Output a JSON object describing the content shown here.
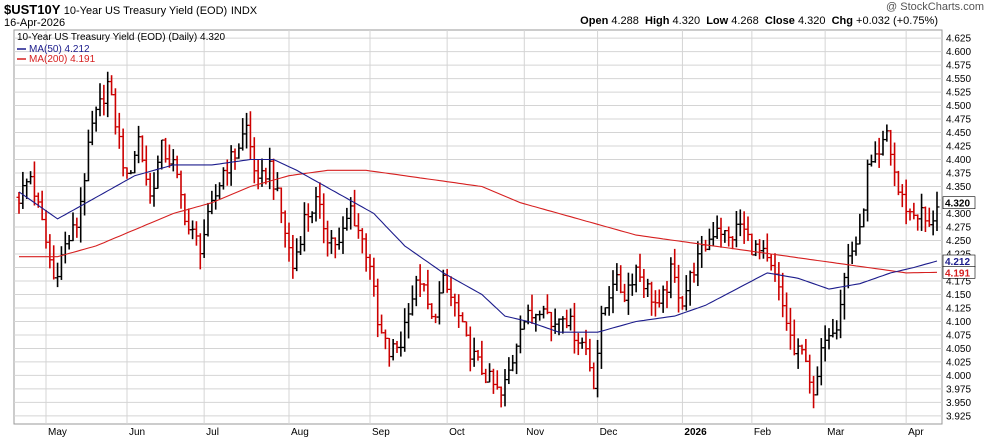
{
  "header": {
    "symbol": "$UST10Y",
    "description": "10-Year US Treasury Yield (EOD)",
    "exchange": "INDX",
    "date": "16-Apr-2026",
    "open_label": "Open",
    "open": "4.288",
    "high_label": "High",
    "high": "4.320",
    "low_label": "Low",
    "low": "4.268",
    "close_label": "Close",
    "close": "4.320",
    "chg_label": "Chg",
    "chg": "+0.032 (+0.75%)",
    "brand": "@ StockCharts.com"
  },
  "legend": {
    "price_line": "10-Year US Treasury Yield (EOD) (Daily) 4.320",
    "ma50": "MA(50) 4.212",
    "ma200": "MA(200) 4.191"
  },
  "colors": {
    "up_bar": "#000000",
    "down_bar": "#cc0000",
    "ma50": "#1c1c8c",
    "ma200": "#d62020",
    "grid": "#d4d4d4",
    "plot_bg": "#ffffff"
  },
  "chart_data": {
    "type": "ohlc",
    "ylim": [
      3.91,
      4.64
    ],
    "y_ticks": [
      "4.625",
      "4.600",
      "4.575",
      "4.550",
      "4.525",
      "4.500",
      "4.475",
      "4.450",
      "4.425",
      "4.400",
      "4.375",
      "4.350",
      "4.325",
      "4.300",
      "4.275",
      "4.250",
      "4.225",
      "4.200",
      "4.175",
      "4.150",
      "4.125",
      "4.100",
      "4.075",
      "4.050",
      "4.025",
      "4.000",
      "3.975",
      "3.950",
      "3.925"
    ],
    "x_labels": [
      {
        "label": "May",
        "index": 7
      },
      {
        "label": "Jun",
        "index": 28
      },
      {
        "label": "Jul",
        "index": 48
      },
      {
        "label": "Aug",
        "index": 70
      },
      {
        "label": "Sep",
        "index": 91
      },
      {
        "label": "Oct",
        "index": 111
      },
      {
        "label": "Nov",
        "index": 131
      },
      {
        "label": "Dec",
        "index": 150
      },
      {
        "label": "2026",
        "index": 172,
        "bold": true
      },
      {
        "label": "Feb",
        "index": 190
      },
      {
        "label": "Mar",
        "index": 209
      },
      {
        "label": "Apr",
        "index": 230
      }
    ],
    "last_index": 238,
    "closes_anchor": [
      [
        0,
        4.33
      ],
      [
        3,
        4.37
      ],
      [
        6,
        4.28
      ],
      [
        9,
        4.18
      ],
      [
        12,
        4.24
      ],
      [
        15,
        4.28
      ],
      [
        19,
        4.46
      ],
      [
        23,
        4.54
      ],
      [
        25,
        4.47
      ],
      [
        28,
        4.36
      ],
      [
        31,
        4.44
      ],
      [
        34,
        4.33
      ],
      [
        37,
        4.42
      ],
      [
        40,
        4.39
      ],
      [
        44,
        4.27
      ],
      [
        47,
        4.24
      ],
      [
        50,
        4.31
      ],
      [
        53,
        4.38
      ],
      [
        56,
        4.41
      ],
      [
        59,
        4.46
      ],
      [
        62,
        4.35
      ],
      [
        65,
        4.39
      ],
      [
        68,
        4.3
      ],
      [
        71,
        4.2
      ],
      [
        74,
        4.29
      ],
      [
        77,
        4.32
      ],
      [
        80,
        4.26
      ],
      [
        83,
        4.24
      ],
      [
        86,
        4.31
      ],
      [
        89,
        4.25
      ],
      [
        91,
        4.21
      ],
      [
        93,
        4.09
      ],
      [
        96,
        4.04
      ],
      [
        99,
        4.06
      ],
      [
        101,
        4.13
      ],
      [
        104,
        4.18
      ],
      [
        107,
        4.1
      ],
      [
        110,
        4.17
      ],
      [
        113,
        4.13
      ],
      [
        116,
        4.06
      ],
      [
        119,
        4.02
      ],
      [
        122,
        3.99
      ],
      [
        125,
        3.96
      ],
      [
        128,
        4.03
      ],
      [
        130,
        4.1
      ],
      [
        133,
        4.11
      ],
      [
        136,
        4.14
      ],
      [
        138,
        4.09
      ],
      [
        141,
        4.12
      ],
      [
        144,
        4.08
      ],
      [
        147,
        4.05
      ],
      [
        149,
        3.99
      ],
      [
        151,
        4.1
      ],
      [
        154,
        4.18
      ],
      [
        157,
        4.15
      ],
      [
        160,
        4.2
      ],
      [
        163,
        4.16
      ],
      [
        166,
        4.12
      ],
      [
        169,
        4.19
      ],
      [
        172,
        4.14
      ],
      [
        175,
        4.2
      ],
      [
        178,
        4.24
      ],
      [
        181,
        4.28
      ],
      [
        184,
        4.25
      ],
      [
        187,
        4.28
      ],
      [
        190,
        4.24
      ],
      [
        193,
        4.22
      ],
      [
        196,
        4.18
      ],
      [
        199,
        4.1
      ],
      [
        201,
        4.04
      ],
      [
        204,
        4.04
      ],
      [
        206,
        3.95
      ],
      [
        209,
        4.08
      ],
      [
        212,
        4.1
      ],
      [
        215,
        4.22
      ],
      [
        218,
        4.26
      ],
      [
        220,
        4.38
      ],
      [
        223,
        4.4
      ],
      [
        225,
        4.45
      ],
      [
        228,
        4.34
      ],
      [
        231,
        4.3
      ],
      [
        234,
        4.3
      ],
      [
        236,
        4.27
      ],
      [
        238,
        4.32
      ]
    ],
    "ma50_anchor": [
      [
        0,
        4.34
      ],
      [
        10,
        4.29
      ],
      [
        20,
        4.33
      ],
      [
        30,
        4.37
      ],
      [
        40,
        4.39
      ],
      [
        50,
        4.39
      ],
      [
        60,
        4.4
      ],
      [
        66,
        4.4
      ],
      [
        72,
        4.38
      ],
      [
        82,
        4.34
      ],
      [
        92,
        4.3
      ],
      [
        100,
        4.24
      ],
      [
        110,
        4.19
      ],
      [
        120,
        4.15
      ],
      [
        126,
        4.11
      ],
      [
        132,
        4.1
      ],
      [
        140,
        4.08
      ],
      [
        150,
        4.08
      ],
      [
        160,
        4.1
      ],
      [
        170,
        4.11
      ],
      [
        178,
        4.13
      ],
      [
        186,
        4.16
      ],
      [
        194,
        4.19
      ],
      [
        202,
        4.18
      ],
      [
        210,
        4.16
      ],
      [
        218,
        4.17
      ],
      [
        226,
        4.19
      ],
      [
        232,
        4.2
      ],
      [
        238,
        4.212
      ]
    ],
    "ma200_anchor": [
      [
        0,
        4.22
      ],
      [
        10,
        4.22
      ],
      [
        20,
        4.24
      ],
      [
        30,
        4.27
      ],
      [
        40,
        4.3
      ],
      [
        50,
        4.32
      ],
      [
        60,
        4.35
      ],
      [
        70,
        4.37
      ],
      [
        80,
        4.38
      ],
      [
        90,
        4.38
      ],
      [
        100,
        4.37
      ],
      [
        110,
        4.36
      ],
      [
        120,
        4.35
      ],
      [
        130,
        4.32
      ],
      [
        140,
        4.3
      ],
      [
        150,
        4.28
      ],
      [
        160,
        4.26
      ],
      [
        170,
        4.25
      ],
      [
        180,
        4.24
      ],
      [
        190,
        4.23
      ],
      [
        200,
        4.22
      ],
      [
        210,
        4.21
      ],
      [
        220,
        4.2
      ],
      [
        230,
        4.19
      ],
      [
        238,
        4.191
      ]
    ]
  }
}
